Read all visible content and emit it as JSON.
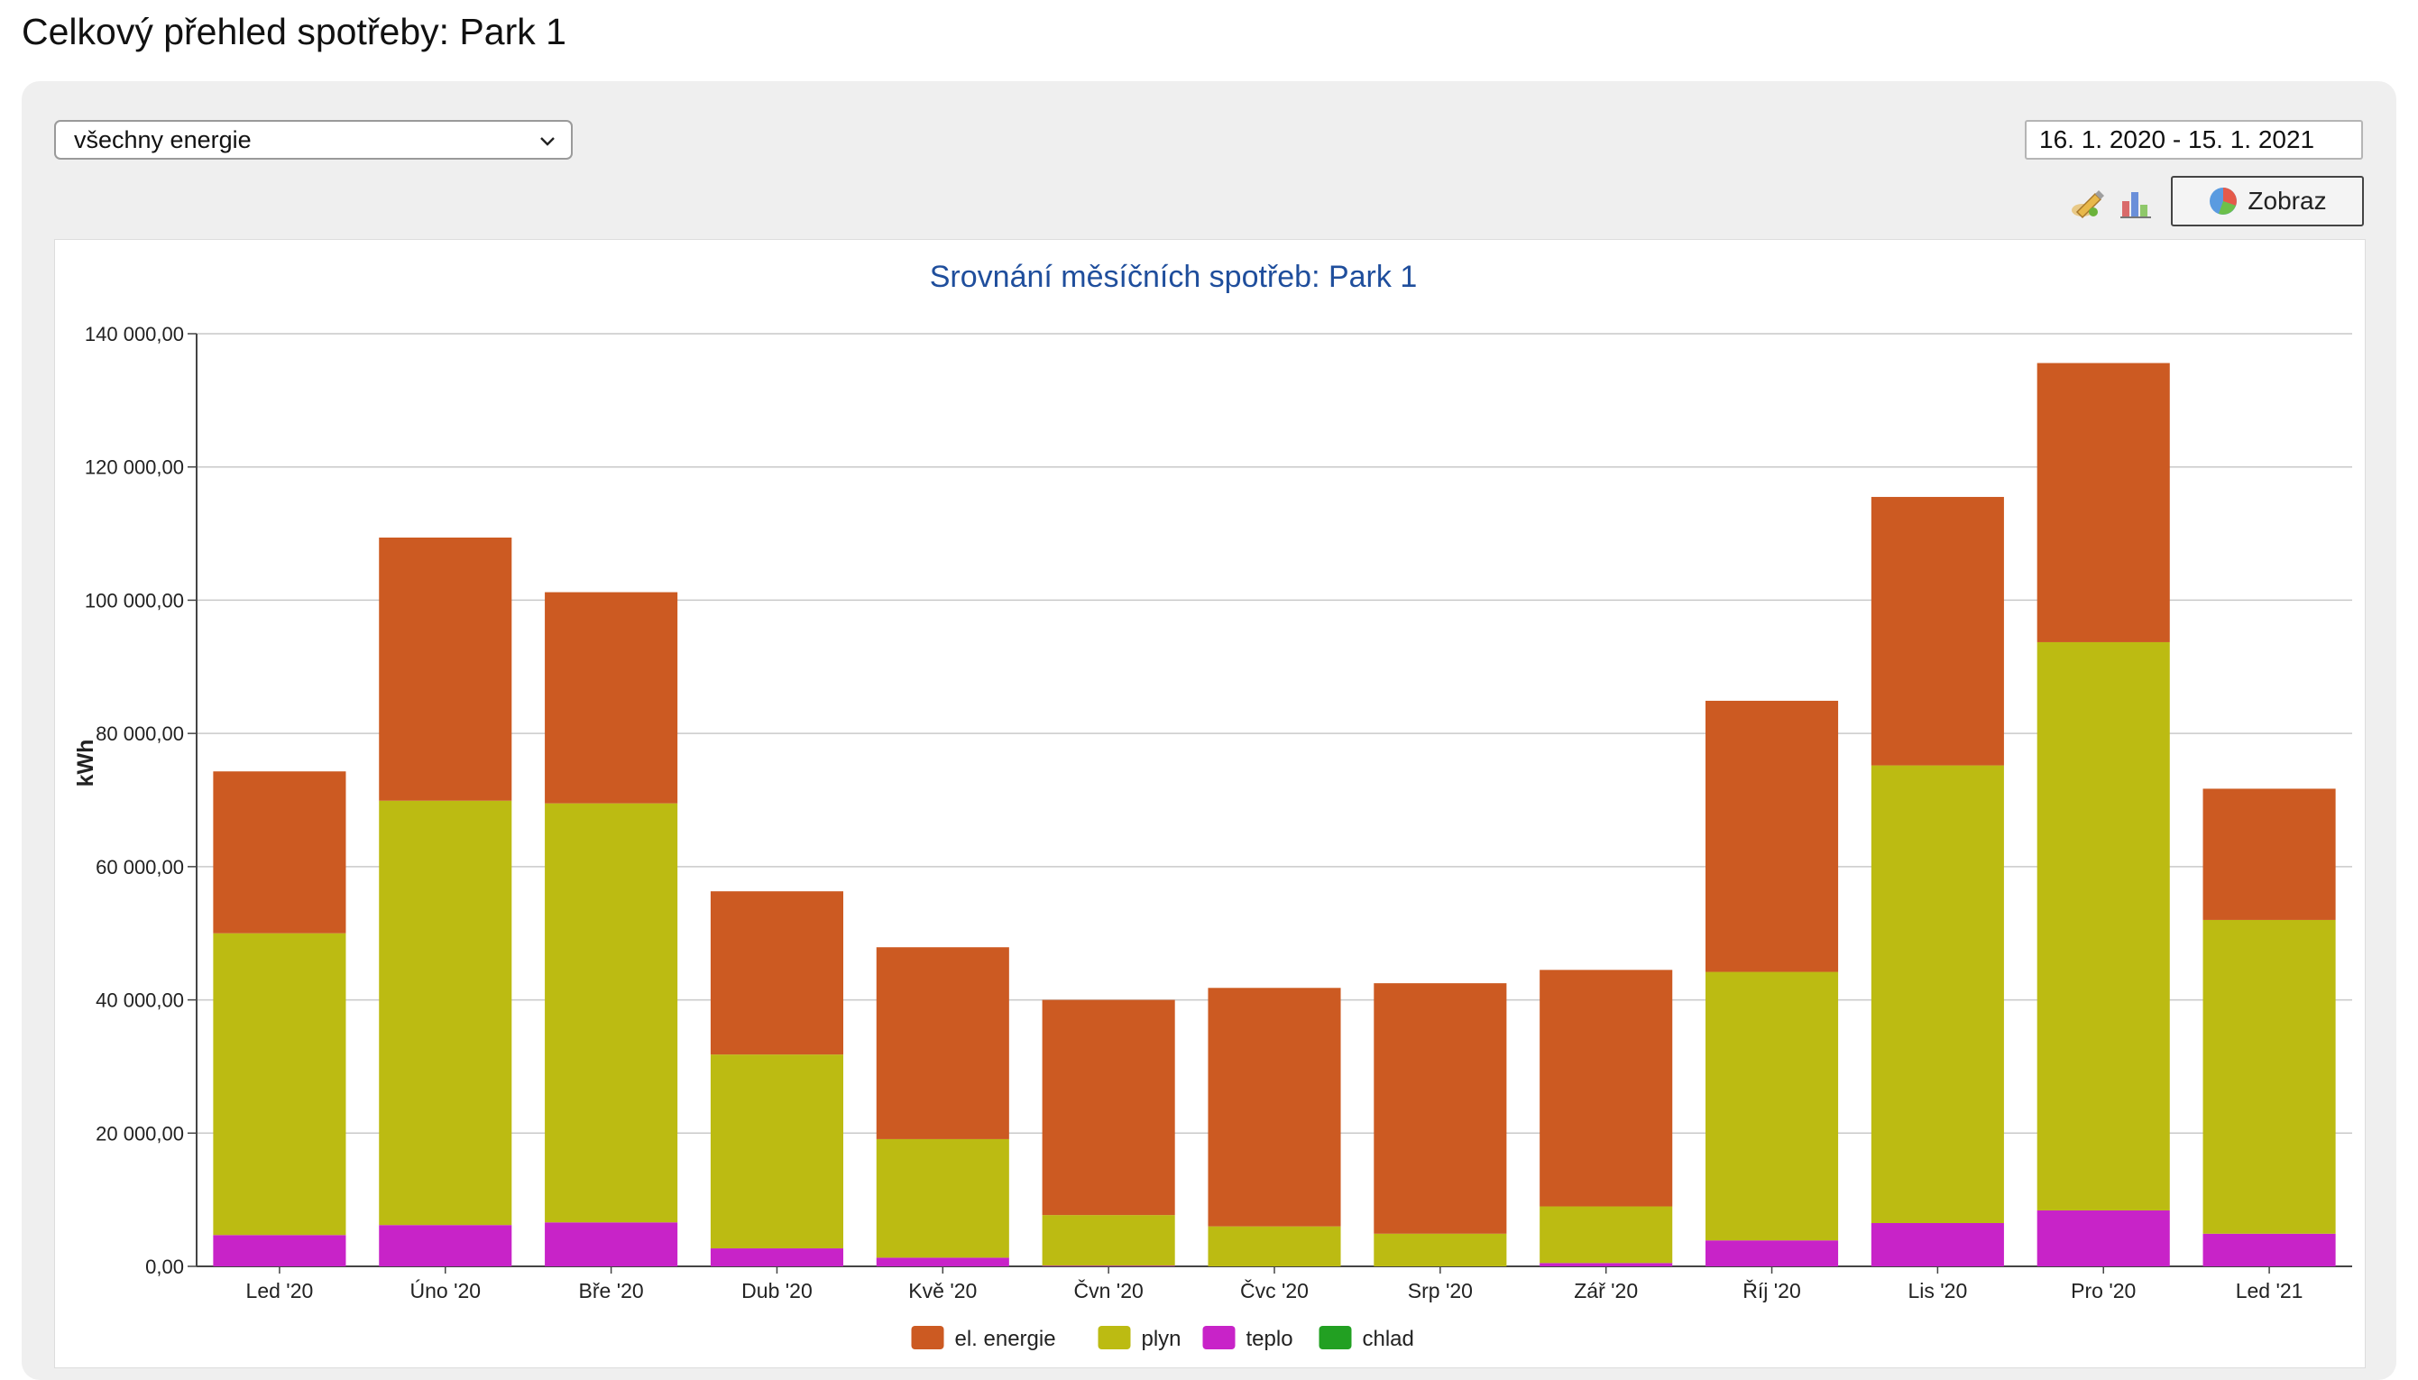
{
  "page": {
    "title": "Celkový přehled spotřeby: Park 1"
  },
  "controls": {
    "energy_select_value": "všechny energie",
    "date_range": "16. 1. 2020 - 15. 1. 2021",
    "show_button_label": "Zobraz"
  },
  "icons": {
    "export": "pencil-edit-icon",
    "chart_type": "bar-chart-icon",
    "show": "pie-chart-icon",
    "select": "chevron-down-icon"
  },
  "colors": {
    "el_energie": "#cc5a22",
    "plyn": "#bcbb12",
    "teplo": "#c823c8",
    "chlad": "#22a022",
    "title": "#1f4e9c"
  },
  "chart_data": {
    "type": "bar",
    "stacked": true,
    "title": "Srovnání měsíčních spotřeb: Park 1",
    "ylabel": "kWh",
    "xlabel": "",
    "ylim": [
      0,
      140000
    ],
    "yticks": [
      "0,00",
      "20 000,00",
      "40 000,00",
      "60 000,00",
      "80 000,00",
      "100 000,00",
      "120 000,00",
      "140 000,00"
    ],
    "grid": true,
    "legend_position": "bottom",
    "categories": [
      "Led '20",
      "Úno '20",
      "Bře '20",
      "Dub '20",
      "Kvě '20",
      "Čvn '20",
      "Čvc '20",
      "Srp '20",
      "Zář '20",
      "Říj '20",
      "Lis '20",
      "Pro '20",
      "Led '21"
    ],
    "series": [
      {
        "name": "el. energie",
        "color": "#cc5a22",
        "values": [
          24300,
          39500,
          31700,
          24500,
          28800,
          32300,
          35800,
          37600,
          35500,
          40700,
          40300,
          41900,
          19700
        ]
      },
      {
        "name": "plyn",
        "color": "#bcbb12",
        "values": [
          45300,
          63700,
          62900,
          29100,
          17800,
          7600,
          6000,
          4900,
          8500,
          40300,
          68700,
          85300,
          47100
        ]
      },
      {
        "name": "teplo",
        "color": "#c823c8",
        "values": [
          4700,
          6200,
          6600,
          2700,
          1300,
          100,
          0,
          0,
          500,
          3900,
          6500,
          8400,
          4900
        ]
      },
      {
        "name": "chlad",
        "color": "#22a022",
        "values": [
          0,
          0,
          0,
          0,
          0,
          0,
          0,
          0,
          0,
          0,
          0,
          0,
          0
        ]
      }
    ]
  }
}
